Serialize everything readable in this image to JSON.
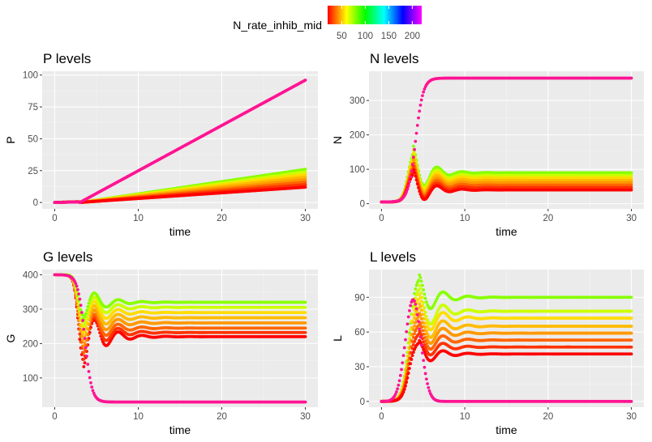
{
  "legend": {
    "title": "N_rate_inhib_mid",
    "ticks": [
      "50",
      "100",
      "150",
      "200"
    ],
    "tick_values": [
      50,
      100,
      150,
      200
    ],
    "range": [
      20,
      220
    ],
    "colors": [
      "#ff0000",
      "#ff8000",
      "#ffff00",
      "#80ff00",
      "#00ff00",
      "#00ff80",
      "#00ffff",
      "#0080ff",
      "#0000ff",
      "#8000ff",
      "#ff00ff"
    ],
    "placement": "top"
  },
  "chart_data": [
    {
      "type": "scatter",
      "title": "P levels",
      "xlabel": "time",
      "ylabel": "P",
      "xlim": [
        -1.5,
        31.5
      ],
      "ylim": [
        -5,
        103
      ],
      "x_ticks": [
        0,
        10,
        20,
        30
      ],
      "x_tick_labels": [
        "0",
        "10",
        "20",
        "30"
      ],
      "y_ticks": [
        0,
        25,
        50,
        75,
        100
      ],
      "y_tick_labels": [
        "0",
        "25",
        "50",
        "75",
        "100"
      ],
      "grid": true,
      "series_summary": "Outlier trajectory (magenta, high inhibition) rises linearly from ~0 to ~96; orange-to-green trajectories rise linearly from 0 to final values",
      "outlier": {
        "color": "#ff1493",
        "start": 0,
        "end": 96,
        "knee": 3
      },
      "family": {
        "start": 0,
        "end_values": [
          12,
          14,
          16,
          18,
          20,
          22,
          24,
          26
        ],
        "knee": 3
      }
    },
    {
      "type": "scatter",
      "title": "N levels",
      "xlabel": "time",
      "ylabel": "N",
      "xlim": [
        -1.5,
        31.5
      ],
      "ylim": [
        -15,
        385
      ],
      "x_ticks": [
        0,
        10,
        20,
        30
      ],
      "x_tick_labels": [
        "0",
        "10",
        "20",
        "30"
      ],
      "y_ticks": [
        0,
        100,
        200,
        300
      ],
      "y_tick_labels": [
        "0",
        "100",
        "200",
        "300"
      ],
      "grid": true,
      "outlier": {
        "color": "#ff1493",
        "start": 5,
        "end": 365
      },
      "family": {
        "steady": [
          40,
          47,
          54,
          61,
          68,
          75,
          82,
          90
        ],
        "peaks": [
          100,
          110,
          120,
          130,
          140,
          150,
          160,
          170
        ]
      }
    },
    {
      "type": "scatter",
      "title": "G levels",
      "xlabel": "time",
      "ylabel": "G",
      "xlim": [
        -1.5,
        31.5
      ],
      "ylim": [
        15,
        415
      ],
      "x_ticks": [
        0,
        10,
        20,
        30
      ],
      "x_tick_labels": [
        "0",
        "10",
        "20",
        "30"
      ],
      "y_ticks": [
        100,
        200,
        300,
        400
      ],
      "y_tick_labels": [
        "100",
        "200",
        "300",
        "400"
      ],
      "grid": true,
      "outlier": {
        "color": "#ff1493",
        "start": 400,
        "end": 30
      },
      "family": {
        "steady": [
          320,
          305,
          290,
          275,
          260,
          245,
          232,
          220
        ],
        "troughs": [
          270,
          250,
          230,
          210,
          190,
          170,
          150,
          128
        ]
      }
    },
    {
      "type": "scatter",
      "title": "L levels",
      "xlabel": "time",
      "ylabel": "L",
      "xlim": [
        -1.5,
        31.5
      ],
      "ylim": [
        -5,
        114
      ],
      "x_ticks": [
        0,
        10,
        20,
        30
      ],
      "x_tick_labels": [
        "0",
        "10",
        "20",
        "30"
      ],
      "y_ticks": [
        0,
        30,
        60,
        90
      ],
      "y_tick_labels": [
        "0",
        "30",
        "60",
        "90"
      ],
      "grid": true,
      "outlier": {
        "color": "#ff1493",
        "start": 0,
        "peak": 88,
        "end": 0
      },
      "family": {
        "steady": [
          41,
          47,
          53,
          59,
          65,
          72,
          78,
          90
        ],
        "peaks": [
          53,
          61,
          69,
          77,
          85,
          93,
          101,
          110
        ]
      }
    }
  ]
}
